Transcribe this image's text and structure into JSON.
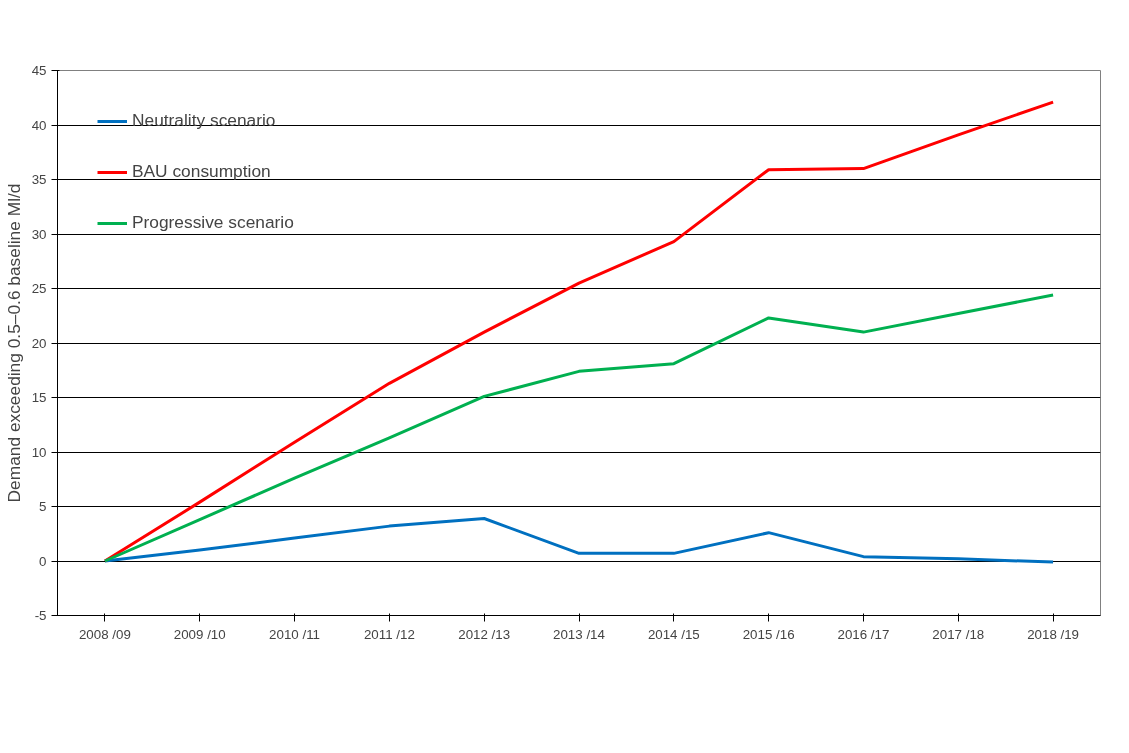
{
  "chart_data": {
    "type": "line",
    "ylabel": "Demand exceeding 0.5–0.6 baseline Ml/d",
    "categories": [
      "2008 /09",
      "2009 /10",
      "2010 /11",
      "2011 /12",
      "2012 /13",
      "2013 /14",
      "2014 /15",
      "2015 /16",
      "2016 /17",
      "2017 /18",
      "2018 /19"
    ],
    "series": [
      {
        "name": "Neutrality scenario",
        "color": "#0070c0",
        "values": [
          0,
          1.0,
          2.1,
          3.2,
          3.9,
          0.7,
          0.7,
          2.6,
          0.4,
          0.2,
          -0.1
        ]
      },
      {
        "name": "BAU consumption",
        "color": "#ff0000",
        "values": [
          0,
          5.4,
          10.9,
          16.3,
          21.0,
          25.5,
          29.3,
          35.9,
          36.0,
          39.1,
          42.1
        ]
      },
      {
        "name": "Progressive scenario",
        "color": "#00b050",
        "values": [
          0,
          3.8,
          7.6,
          11.3,
          15.1,
          17.4,
          18.1,
          22.3,
          21.0,
          22.7,
          24.4
        ]
      }
    ],
    "ylim": [
      -5,
      45
    ],
    "yticks": [
      -5,
      0,
      5,
      10,
      15,
      20,
      25,
      30,
      35,
      40,
      45
    ],
    "grid": "y",
    "legend": "top left",
    "marker": "none",
    "line_style": "solid"
  }
}
